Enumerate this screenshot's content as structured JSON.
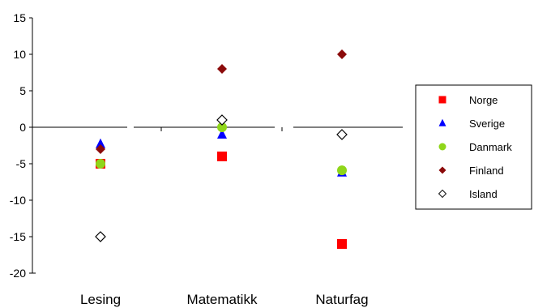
{
  "chart_data": {
    "type": "scatter",
    "categories": [
      "Lesing",
      "Matematikk",
      "Naturfag"
    ],
    "ylim": [
      -20,
      15
    ],
    "yticks": [
      15,
      10,
      5,
      0,
      -5,
      -10,
      -15,
      -20
    ],
    "grid": false,
    "legend_position": "right",
    "series": [
      {
        "name": "Norge",
        "marker": "square",
        "color": "#ff0000",
        "values": [
          -5,
          -4,
          -16
        ]
      },
      {
        "name": "Sverige",
        "marker": "triangle",
        "color": "#0000ff",
        "values": [
          -2.3,
          -1,
          -6.2
        ]
      },
      {
        "name": "Danmark",
        "marker": "circle",
        "color": "#8fd61a",
        "values": [
          -5,
          0,
          -5.9
        ]
      },
      {
        "name": "Finland",
        "marker": "diamond",
        "color": "#8b0a0a",
        "values": [
          -3,
          8,
          10
        ]
      },
      {
        "name": "Island",
        "marker": "diamond-open",
        "color": "#000000",
        "values": [
          -15,
          1,
          -1
        ]
      }
    ]
  }
}
